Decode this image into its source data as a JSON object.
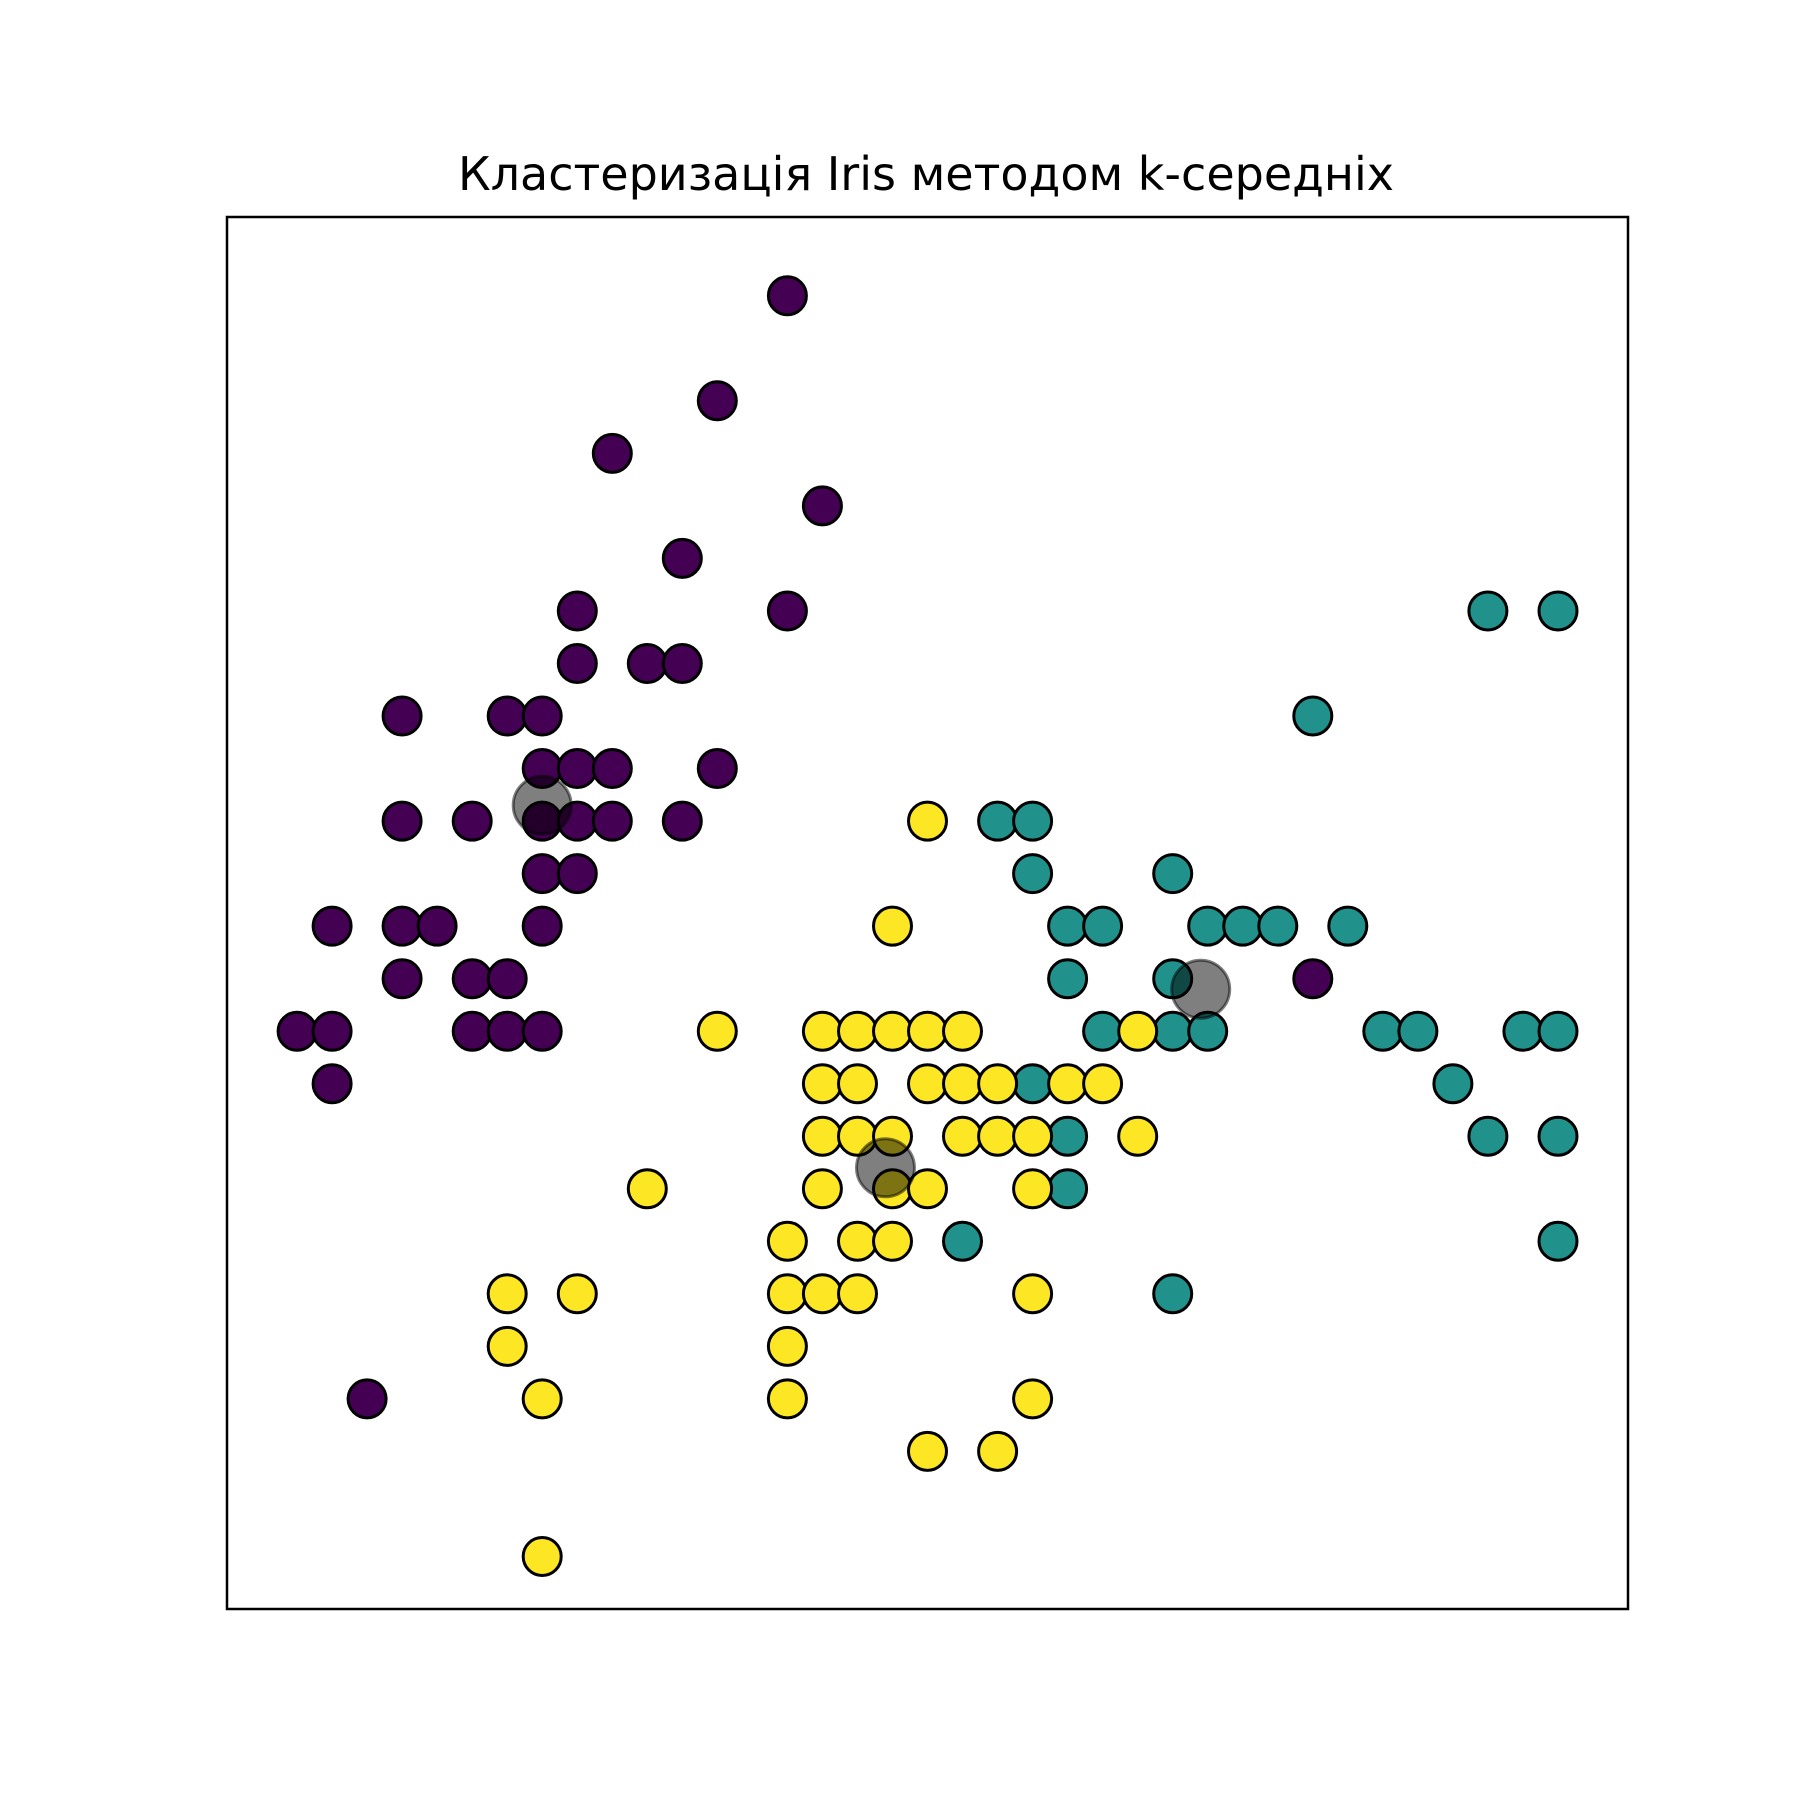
{
  "chart_data": {
    "type": "scatter",
    "title": "Кластеризація Iris методом k-середніх",
    "xlabel": "",
    "ylabel": "",
    "xlim": [
      4.2,
      8.2
    ],
    "ylim": [
      1.9,
      4.55
    ],
    "axes_visible": false,
    "grid": false,
    "legend": "none",
    "colors": {
      "cluster_0": "#440154",
      "cluster_1": "#21918c",
      "cluster_2": "#fde725",
      "centroid": "#000000"
    },
    "series": [
      {
        "cluster": 0,
        "color": "#440154",
        "points": [
          [
            5.8,
            4.4
          ],
          [
            5.6,
            4.2
          ],
          [
            5.3,
            4.1
          ],
          [
            5.9,
            4.0
          ],
          [
            5.5,
            3.9
          ],
          [
            5.2,
            3.8
          ],
          [
            5.8,
            3.8
          ],
          [
            5.2,
            3.7
          ],
          [
            5.4,
            3.7
          ],
          [
            5.5,
            3.7
          ],
          [
            4.7,
            3.6
          ],
          [
            5.0,
            3.6
          ],
          [
            5.1,
            3.6
          ],
          [
            5.1,
            3.5
          ],
          [
            5.2,
            3.5
          ],
          [
            5.3,
            3.5
          ],
          [
            5.6,
            3.5
          ],
          [
            4.7,
            3.4
          ],
          [
            4.9,
            3.4
          ],
          [
            5.1,
            3.4
          ],
          [
            5.2,
            3.4
          ],
          [
            5.3,
            3.4
          ],
          [
            5.5,
            3.4
          ],
          [
            5.1,
            3.3
          ],
          [
            5.2,
            3.3
          ],
          [
            4.5,
            3.2
          ],
          [
            4.7,
            3.2
          ],
          [
            4.8,
            3.2
          ],
          [
            5.1,
            3.2
          ],
          [
            4.7,
            3.1
          ],
          [
            4.9,
            3.1
          ],
          [
            5.0,
            3.1
          ],
          [
            4.4,
            3.0
          ],
          [
            4.5,
            3.0
          ],
          [
            4.9,
            3.0
          ],
          [
            5.0,
            3.0
          ],
          [
            5.1,
            3.0
          ],
          [
            4.5,
            2.9
          ],
          [
            4.6,
            2.3
          ],
          [
            7.3,
            3.1
          ]
        ]
      },
      {
        "cluster": 1,
        "color": "#21918c",
        "points": [
          [
            7.8,
            3.8
          ],
          [
            8.0,
            3.8
          ],
          [
            7.3,
            3.6
          ],
          [
            6.4,
            3.4
          ],
          [
            6.5,
            3.4
          ],
          [
            6.5,
            3.3
          ],
          [
            6.9,
            3.3
          ],
          [
            6.6,
            3.2
          ],
          [
            6.7,
            3.2
          ],
          [
            7.0,
            3.2
          ],
          [
            7.1,
            3.2
          ],
          [
            7.2,
            3.2
          ],
          [
            7.4,
            3.2
          ],
          [
            6.6,
            3.1
          ],
          [
            6.9,
            3.1
          ],
          [
            6.7,
            3.0
          ],
          [
            6.9,
            3.0
          ],
          [
            7.0,
            3.0
          ],
          [
            7.5,
            3.0
          ],
          [
            7.6,
            3.0
          ],
          [
            7.9,
            3.0
          ],
          [
            8.0,
            3.0
          ],
          [
            6.5,
            2.9
          ],
          [
            7.7,
            2.9
          ],
          [
            6.6,
            2.8
          ],
          [
            7.8,
            2.8
          ],
          [
            8.0,
            2.8
          ],
          [
            6.6,
            2.7
          ],
          [
            6.3,
            2.6
          ],
          [
            8.0,
            2.6
          ],
          [
            6.9,
            2.5
          ]
        ]
      },
      {
        "cluster": 2,
        "color": "#fde725",
        "points": [
          [
            6.2,
            3.4
          ],
          [
            6.1,
            3.2
          ],
          [
            5.6,
            3.0
          ],
          [
            5.9,
            3.0
          ],
          [
            6.0,
            3.0
          ],
          [
            6.1,
            3.0
          ],
          [
            6.2,
            3.0
          ],
          [
            6.3,
            3.0
          ],
          [
            6.8,
            3.0
          ],
          [
            5.9,
            2.9
          ],
          [
            6.0,
            2.9
          ],
          [
            6.2,
            2.9
          ],
          [
            6.3,
            2.9
          ],
          [
            6.4,
            2.9
          ],
          [
            6.6,
            2.9
          ],
          [
            6.7,
            2.9
          ],
          [
            5.9,
            2.8
          ],
          [
            6.0,
            2.8
          ],
          [
            6.1,
            2.8
          ],
          [
            6.3,
            2.8
          ],
          [
            6.4,
            2.8
          ],
          [
            6.5,
            2.8
          ],
          [
            6.8,
            2.8
          ],
          [
            5.4,
            2.7
          ],
          [
            5.9,
            2.7
          ],
          [
            6.1,
            2.7
          ],
          [
            6.2,
            2.7
          ],
          [
            6.5,
            2.7
          ],
          [
            5.8,
            2.6
          ],
          [
            6.0,
            2.6
          ],
          [
            6.1,
            2.6
          ],
          [
            5.0,
            2.5
          ],
          [
            5.2,
            2.5
          ],
          [
            5.8,
            2.5
          ],
          [
            5.9,
            2.5
          ],
          [
            6.0,
            2.5
          ],
          [
            6.5,
            2.5
          ],
          [
            5.0,
            2.4
          ],
          [
            5.8,
            2.4
          ],
          [
            5.1,
            2.3
          ],
          [
            5.8,
            2.3
          ],
          [
            6.5,
            2.3
          ],
          [
            6.2,
            2.2
          ],
          [
            6.4,
            2.2
          ],
          [
            5.1,
            2.0
          ]
        ]
      }
    ],
    "centroids": [
      [
        5.1,
        3.43
      ],
      [
        6.98,
        3.08
      ],
      [
        6.08,
        2.74
      ]
    ]
  }
}
